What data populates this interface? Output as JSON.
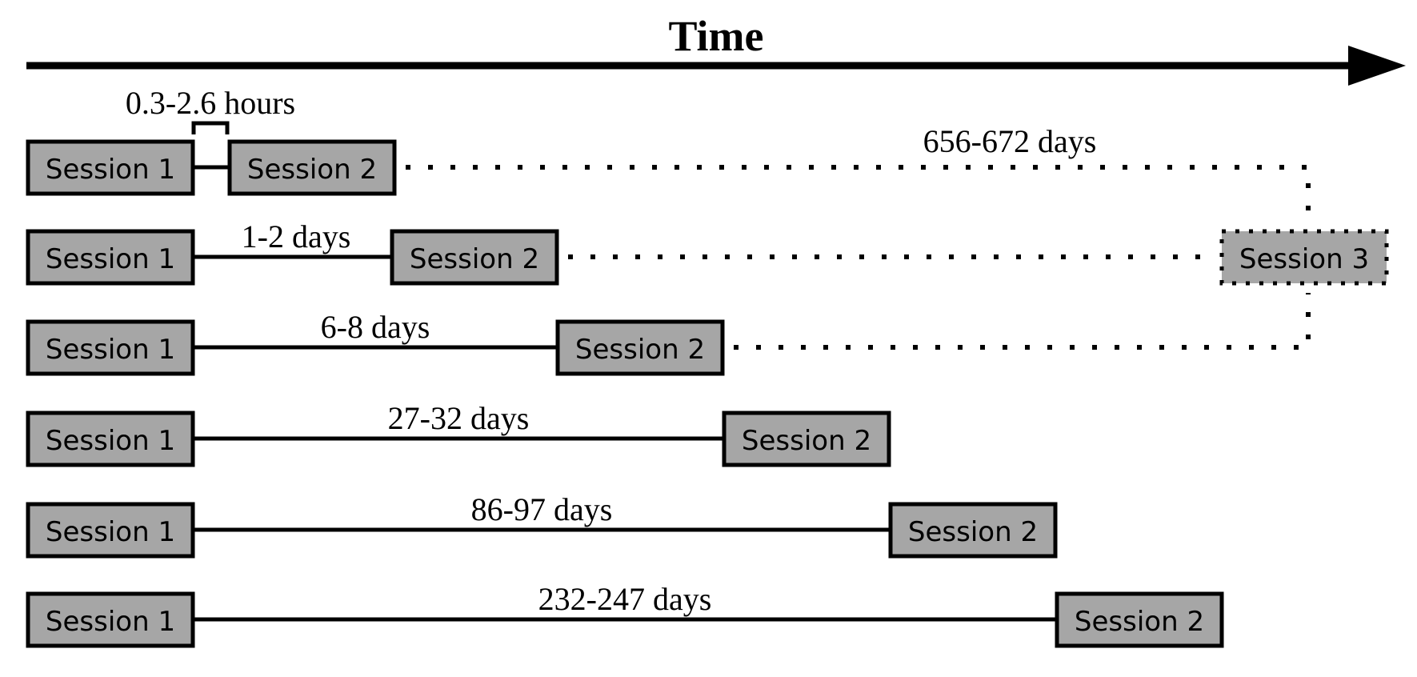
{
  "title": "Time",
  "session_labels": {
    "session1": "Session 1",
    "session2": "Session 2",
    "session3": "Session 3"
  },
  "rows": [
    {
      "interval": "0.3-2.6 hours"
    },
    {
      "interval": "1-2 days"
    },
    {
      "interval": "6-8 days"
    },
    {
      "interval": "27-32 days"
    },
    {
      "interval": "86-97 days"
    },
    {
      "interval": "232-247 days"
    }
  ],
  "followup_interval": "656-672 days",
  "colors": {
    "box_fill": "#a6a6a6",
    "stroke": "#000000"
  }
}
